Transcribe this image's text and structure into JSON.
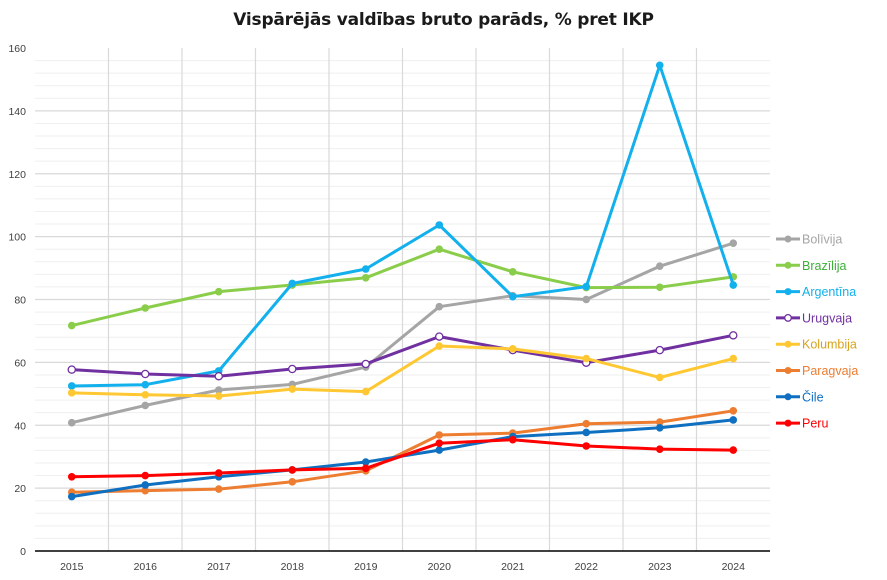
{
  "chart_data": {
    "type": "line",
    "title": "Vispārējās valdības bruto parāds, % pret IKP",
    "xlabel": "",
    "ylabel": "",
    "categories": [
      "2015",
      "2016",
      "2017",
      "2018",
      "2019",
      "2020",
      "2021",
      "2022",
      "2023",
      "2024"
    ],
    "ylim": [
      0,
      160
    ],
    "yticks": [
      0,
      20,
      40,
      60,
      80,
      100,
      120,
      140,
      160
    ],
    "grid": true,
    "legend_position": "right",
    "series": [
      {
        "name": "Bolīvija",
        "color": "#A5A5A5",
        "marker": "filled",
        "values": [
          40.8,
          46.3,
          51.2,
          53.0,
          58.5,
          77.7,
          81.2,
          80.0,
          90.6,
          97.9
        ]
      },
      {
        "name": "Brazīlija",
        "color": "#8ACD4A",
        "text_color": "#3DAF3A",
        "marker": "filled",
        "values": [
          71.7,
          77.3,
          82.5,
          84.6,
          86.9,
          96.0,
          88.8,
          83.8,
          83.9,
          87.2
        ]
      },
      {
        "name": "Argentīna",
        "color": "#12B0EC",
        "marker": "filled",
        "values": [
          52.5,
          52.9,
          57.3,
          85.1,
          89.7,
          103.7,
          80.9,
          84.1,
          154.5,
          84.6
        ]
      },
      {
        "name": "Urugvaja",
        "color": "#7030A0",
        "marker": "hollow",
        "values": [
          57.7,
          56.3,
          55.6,
          57.9,
          59.5,
          68.2,
          63.9,
          59.9,
          63.9,
          68.6
        ]
      },
      {
        "name": "Kolumbija",
        "color": "#FFC832",
        "text_color": "#D9A21B",
        "marker": "filled",
        "values": [
          50.3,
          49.7,
          49.3,
          51.5,
          50.7,
          65.2,
          64.3,
          61.2,
          55.2,
          61.2
        ]
      },
      {
        "name": "Paragvaja",
        "color": "#ED7D31",
        "marker": "filled",
        "values": [
          18.7,
          19.2,
          19.7,
          22.0,
          25.5,
          36.9,
          37.5,
          40.5,
          41.0,
          44.6
        ]
      },
      {
        "name": "Čile",
        "color": "#0F6FC0",
        "marker": "filled",
        "values": [
          17.3,
          21.0,
          23.6,
          25.8,
          28.3,
          32.1,
          36.4,
          37.7,
          39.2,
          41.7
        ]
      },
      {
        "name": "Peru",
        "color": "#FF0000",
        "marker": "filled",
        "values": [
          23.6,
          24.0,
          24.8,
          25.8,
          26.3,
          34.3,
          35.4,
          33.4,
          32.4,
          32.1
        ]
      }
    ]
  }
}
